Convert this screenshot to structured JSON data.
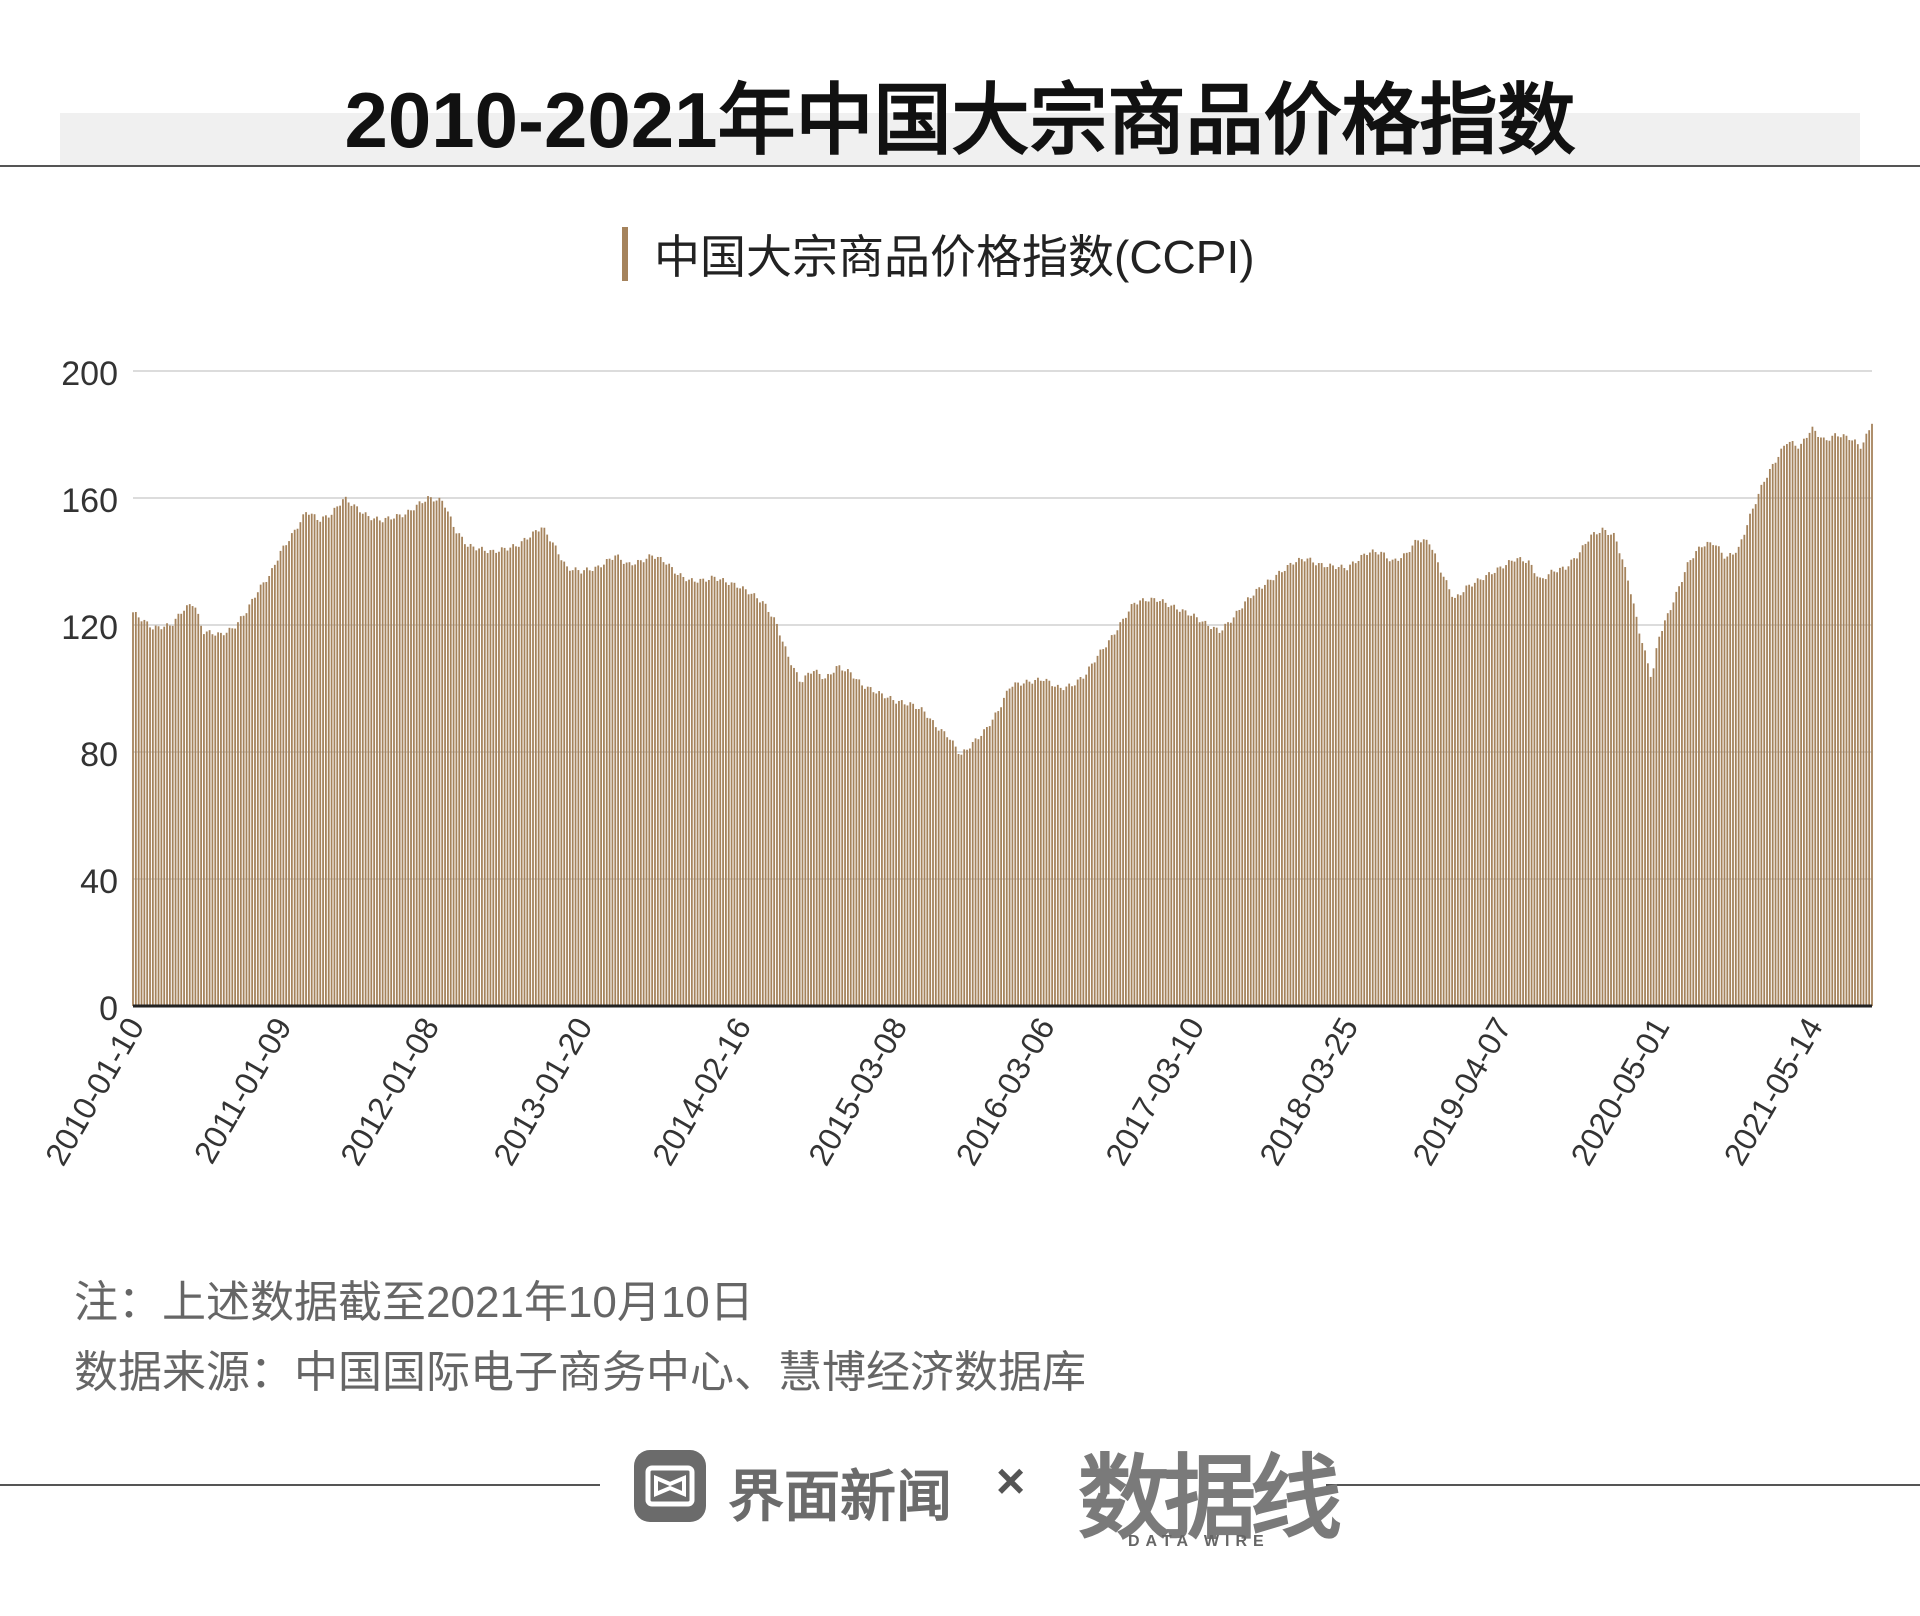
{
  "title": "2010-2021年中国大宗商品价格指数",
  "legend": {
    "label": "中国大宗商品价格指数(CCPI)",
    "color": "#a5835c"
  },
  "chart_data": {
    "type": "bar",
    "series": [
      {
        "name": "中国大宗商品价格指数(CCPI)"
      }
    ],
    "ylim": [
      0,
      200
    ],
    "yticks": [
      0,
      40,
      80,
      120,
      160,
      200
    ],
    "xticks": [
      "2010-01-10",
      "2011-01-09",
      "2012-01-08",
      "2013-01-20",
      "2014-02-16",
      "2015-03-08",
      "2016-03-06",
      "2017-03-10",
      "2018-03-25",
      "2019-04-07",
      "2020-05-01",
      "2021-05-14"
    ],
    "grid": true,
    "bar_color": "#a5835c",
    "data": [
      [
        "2010-01-10",
        124
      ],
      [
        "2010-03-01",
        119
      ],
      [
        "2010-04-15",
        120
      ],
      [
        "2010-05-15",
        125
      ],
      [
        "2010-06-10",
        127
      ],
      [
        "2010-07-01",
        118
      ],
      [
        "2010-08-15",
        117
      ],
      [
        "2010-09-15",
        119
      ],
      [
        "2010-10-15",
        124
      ],
      [
        "2010-11-15",
        131
      ],
      [
        "2010-12-15",
        136
      ],
      [
        "2011-01-09",
        143
      ],
      [
        "2011-02-15",
        150
      ],
      [
        "2011-03-15",
        156
      ],
      [
        "2011-04-15",
        153
      ],
      [
        "2011-05-15",
        155
      ],
      [
        "2011-06-15",
        160
      ],
      [
        "2011-07-15",
        157
      ],
      [
        "2011-08-15",
        154
      ],
      [
        "2011-09-15",
        153
      ],
      [
        "2011-10-15",
        154
      ],
      [
        "2011-11-15",
        155
      ],
      [
        "2011-12-15",
        158
      ],
      [
        "2012-01-08",
        160
      ],
      [
        "2012-02-15",
        159
      ],
      [
        "2012-03-15",
        150
      ],
      [
        "2012-04-15",
        145
      ],
      [
        "2012-05-15",
        144
      ],
      [
        "2012-06-15",
        143
      ],
      [
        "2012-07-15",
        144
      ],
      [
        "2012-08-15",
        145
      ],
      [
        "2012-09-15",
        148
      ],
      [
        "2012-10-15",
        151
      ],
      [
        "2012-11-15",
        145
      ],
      [
        "2012-12-15",
        138
      ],
      [
        "2013-01-20",
        137
      ],
      [
        "2013-03-01",
        138
      ],
      [
        "2013-04-15",
        142
      ],
      [
        "2013-05-15",
        139
      ],
      [
        "2013-06-15",
        140
      ],
      [
        "2013-07-15",
        142
      ],
      [
        "2013-08-15",
        140
      ],
      [
        "2013-09-15",
        136
      ],
      [
        "2013-10-15",
        134
      ],
      [
        "2013-11-15",
        134
      ],
      [
        "2013-12-15",
        135
      ],
      [
        "2014-02-16",
        132
      ],
      [
        "2014-03-15",
        130
      ],
      [
        "2014-04-15",
        127
      ],
      [
        "2014-05-15",
        121
      ],
      [
        "2014-06-15",
        110
      ],
      [
        "2014-07-15",
        102
      ],
      [
        "2014-08-15",
        106
      ],
      [
        "2014-09-15",
        103
      ],
      [
        "2014-10-15",
        107
      ],
      [
        "2014-11-15",
        105
      ],
      [
        "2014-12-15",
        101
      ],
      [
        "2015-03-08",
        96
      ],
      [
        "2015-04-15",
        95
      ],
      [
        "2015-05-15",
        93
      ],
      [
        "2015-06-15",
        88
      ],
      [
        "2015-07-15",
        85
      ],
      [
        "2015-08-15",
        79
      ],
      [
        "2015-09-15",
        83
      ],
      [
        "2015-10-15",
        87
      ],
      [
        "2015-11-15",
        93
      ],
      [
        "2015-12-15",
        101
      ],
      [
        "2016-03-06",
        103
      ],
      [
        "2016-04-15",
        100
      ],
      [
        "2016-05-15",
        101
      ],
      [
        "2016-06-15",
        104
      ],
      [
        "2016-07-15",
        110
      ],
      [
        "2016-08-15",
        115
      ],
      [
        "2016-09-15",
        121
      ],
      [
        "2016-10-15",
        127
      ],
      [
        "2016-11-15",
        128
      ],
      [
        "2016-12-15",
        128
      ],
      [
        "2017-01-15",
        126
      ],
      [
        "2017-03-10",
        123
      ],
      [
        "2017-04-15",
        120
      ],
      [
        "2017-05-15",
        118
      ],
      [
        "2017-06-15",
        122
      ],
      [
        "2017-07-15",
        127
      ],
      [
        "2017-08-15",
        131
      ],
      [
        "2017-09-15",
        134
      ],
      [
        "2017-10-15",
        137
      ],
      [
        "2017-11-15",
        140
      ],
      [
        "2017-12-15",
        141
      ],
      [
        "2018-01-15",
        139
      ],
      [
        "2018-03-25",
        138
      ],
      [
        "2018-04-15",
        140
      ],
      [
        "2018-05-15",
        143
      ],
      [
        "2018-06-15",
        143
      ],
      [
        "2018-07-15",
        140
      ],
      [
        "2018-08-15",
        142
      ],
      [
        "2018-09-15",
        147
      ],
      [
        "2018-10-15",
        146
      ],
      [
        "2018-11-15",
        136
      ],
      [
        "2018-12-15",
        128
      ],
      [
        "2019-01-15",
        132
      ],
      [
        "2019-04-07",
        138
      ],
      [
        "2019-05-15",
        141
      ],
      [
        "2019-06-15",
        140
      ],
      [
        "2019-07-15",
        134
      ],
      [
        "2019-08-15",
        137
      ],
      [
        "2019-09-15",
        138
      ],
      [
        "2019-10-15",
        142
      ],
      [
        "2019-11-15",
        148
      ],
      [
        "2019-12-15",
        150
      ],
      [
        "2020-01-15",
        148
      ],
      [
        "2020-02-15",
        135
      ],
      [
        "2020-03-15",
        118
      ],
      [
        "2020-04-15",
        103
      ],
      [
        "2020-05-01",
        116
      ],
      [
        "2020-06-15",
        130
      ],
      [
        "2020-07-15",
        140
      ],
      [
        "2020-08-15",
        145
      ],
      [
        "2020-09-15",
        146
      ],
      [
        "2020-10-15",
        141
      ],
      [
        "2020-11-15",
        144
      ],
      [
        "2020-12-15",
        155
      ],
      [
        "2021-01-15",
        165
      ],
      [
        "2021-02-15",
        172
      ],
      [
        "2021-03-15",
        178
      ],
      [
        "2021-04-15",
        176
      ],
      [
        "2021-05-14",
        182
      ],
      [
        "2021-06-15",
        178
      ],
      [
        "2021-07-15",
        180
      ],
      [
        "2021-08-15",
        179
      ],
      [
        "2021-09-15",
        176
      ],
      [
        "2021-10-10",
        184
      ]
    ]
  },
  "notes": {
    "note": "注：上述数据截至2021年10月10日",
    "source": "数据来源：中国国际电子商务中心、慧博经济数据库"
  },
  "footer": {
    "brand": "界面新闻",
    "times": "×",
    "logo_cn": "数据线",
    "logo_en": "DATA WIRE"
  }
}
